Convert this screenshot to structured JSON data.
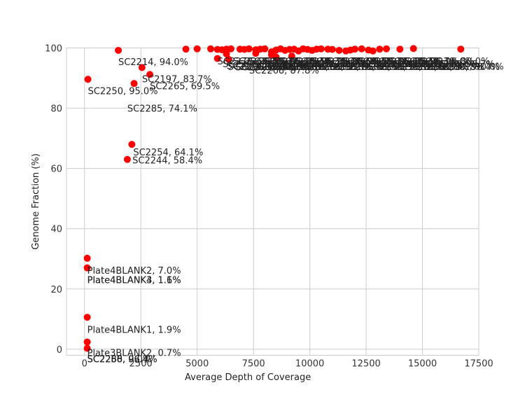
{
  "chart_data": {
    "type": "scatter",
    "title": "",
    "xlabel": "Average Depth of Coverage",
    "ylabel": "Genome Fraction (%)",
    "xlim": [
      -800,
      17500
    ],
    "ylim": [
      -2,
      100
    ],
    "xticks": [
      0,
      2500,
      5000,
      7500,
      10000,
      12500,
      15000,
      17500
    ],
    "xtick_labels": [
      "0",
      "2500",
      "5000",
      "7500",
      "10000",
      "12500",
      "15000",
      "17500"
    ],
    "yticks": [
      0,
      20,
      40,
      60,
      80,
      100
    ],
    "ytick_labels": [
      "0",
      "20",
      "40",
      "60",
      "80",
      "100"
    ],
    "grid": true,
    "marker_color": "#ff0000",
    "series": [
      {
        "x": [
          120,
          120,
          120,
          120,
          120,
          150,
          1500,
          1900,
          2100,
          2200,
          2550,
          2900,
          4500,
          5000,
          5600,
          5900,
          6100,
          6300,
          6500,
          6900,
          7100,
          7300,
          7600,
          7800,
          8000,
          8300,
          8500,
          8700,
          8900,
          9100,
          9300,
          9500,
          9700,
          9900,
          10100,
          10300,
          10500,
          10800,
          11000,
          11300,
          11600,
          11800,
          12000,
          12300,
          12600,
          12800,
          13100,
          13400,
          14000,
          14600,
          16700,
          6300,
          7600,
          8300,
          8500,
          9200,
          5900,
          6400
        ],
        "y": [
          0.3,
          2.4,
          10.6,
          27.0,
          30.2,
          89.6,
          99.2,
          63.0,
          68.0,
          88.2,
          93.5,
          91.2,
          99.6,
          99.7,
          99.7,
          99.5,
          99.4,
          99.6,
          99.7,
          99.6,
          99.5,
          99.7,
          99.4,
          99.6,
          99.7,
          98.7,
          99.3,
          99.7,
          99.2,
          99.5,
          99.6,
          99.0,
          99.7,
          99.5,
          99.2,
          99.6,
          99.7,
          99.6,
          99.5,
          99.2,
          99.0,
          99.3,
          99.6,
          99.7,
          99.3,
          99.0,
          99.6,
          99.7,
          99.6,
          99.8,
          99.6,
          98.0,
          98.2,
          97.7,
          97.0,
          97.3,
          96.5,
          96.2
        ]
      }
    ],
    "annotations": [
      {
        "text": "SC2250, 95.0%",
        "x": 150,
        "y": 89.6
      },
      {
        "text": "SC2214, 94.0%",
        "x": 1500,
        "y": 99.2
      },
      {
        "text": "SC2197, 83.7%",
        "x": 2550,
        "y": 93.5
      },
      {
        "text": "SC2265, 69.5%",
        "x": 2900,
        "y": 91.2
      },
      {
        "text": "SC2285, 74.1%",
        "x": 1900,
        "y": 88.2
      },
      {
        "text": "SC2254, 64.1%",
        "x": 2100,
        "y": 68.0
      },
      {
        "text": "SC2244, 58.4%",
        "x": 2000,
        "y": 63.0
      },
      {
        "text": "Plate4BLANK2, 7.0%",
        "x": 120,
        "y": 30.2
      },
      {
        "text": "Plate4BLANK3, 1.1%",
        "x": 120,
        "y": 27.0
      },
      {
        "text": "Plate4BLANK4, 1.6%",
        "x": 120,
        "y": 27.0
      },
      {
        "text": "Plate4BLANK1, 1.9%",
        "x": 120,
        "y": 10.6
      },
      {
        "text": "Plate3BLANK2, 0.7%",
        "x": 120,
        "y": 2.4
      },
      {
        "text": "SC2256, 0.0%",
        "x": 120,
        "y": 0.3
      },
      {
        "text": "SC2260, 96.7%",
        "x": 120,
        "y": 0.3
      },
      {
        "text": "SC2288, 96.4%",
        "x": 120,
        "y": 0.3
      },
      {
        "text": "SC2270, 90.5%",
        "x": 6300,
        "y": 97.7
      },
      {
        "text": "SC2276, 89.5%",
        "x": 6700,
        "y": 97.0
      },
      {
        "text": "SC2268, 87.8%",
        "x": 7300,
        "y": 96.2
      },
      {
        "text": "SC2230, 80.0%",
        "x": 7600,
        "y": 96.2
      },
      {
        "text": "SC2248, 90.0%",
        "x": 15500,
        "y": 97.0
      }
    ]
  }
}
